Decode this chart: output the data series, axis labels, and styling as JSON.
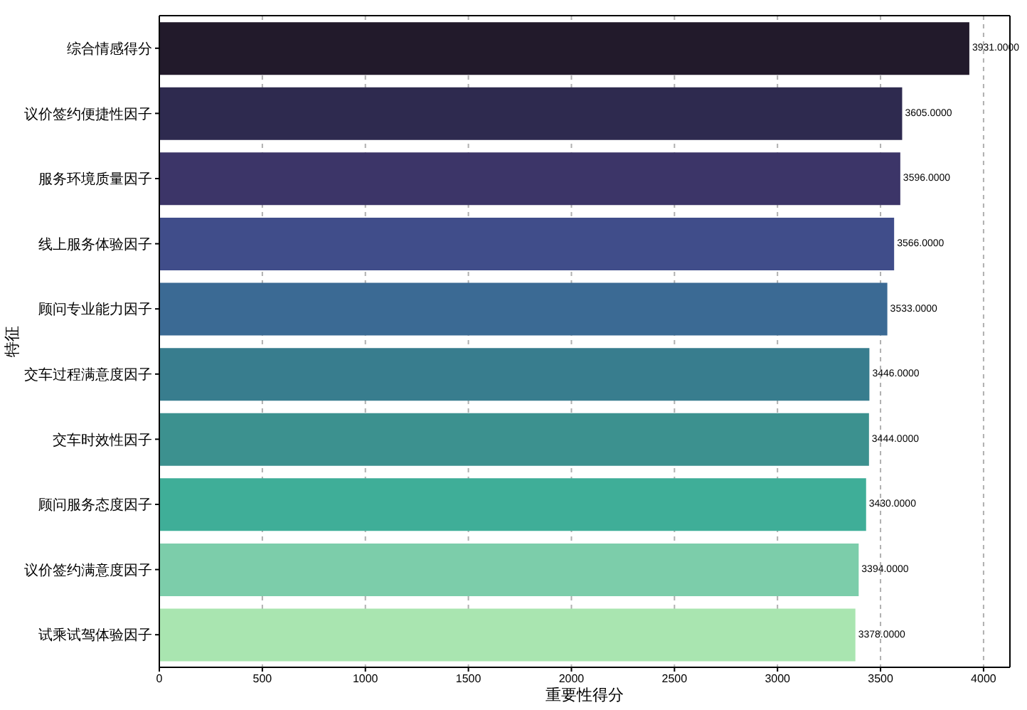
{
  "chart_data": {
    "type": "bar",
    "orientation": "horizontal",
    "categories": [
      "综合情感得分",
      "议价签约便捷性因子",
      "服务环境质量因子",
      "线上服务体验因子",
      "顾问专业能力因子",
      "交车过程满意度因子",
      "交车时效性因子",
      "顾问服务态度因子",
      "议价签约满意度因子",
      "试乘试驾体验因子"
    ],
    "values": [
      3931,
      3605,
      3596,
      3566,
      3533,
      3446,
      3444,
      3430,
      3394,
      3378
    ],
    "colors": [
      "#221a2b",
      "#2e2a4f",
      "#3c3568",
      "#404d8a",
      "#3b6a94",
      "#387d8e",
      "#3c918f",
      "#3fae98",
      "#7ccdaa",
      "#a9e5b0"
    ],
    "value_labels": [
      "3931.0000",
      "3605.0000",
      "3596.0000",
      "3566.0000",
      "3533.0000",
      "3446.0000",
      "3444.0000",
      "3430.0000",
      "3394.0000",
      "3378.0000"
    ],
    "xlabel": "重要性得分",
    "ylabel": "特征",
    "xlim": [
      0,
      4128
    ],
    "xticks": [
      0,
      500,
      1000,
      1500,
      2000,
      2500,
      3000,
      3500,
      4000
    ],
    "grid": "x"
  }
}
